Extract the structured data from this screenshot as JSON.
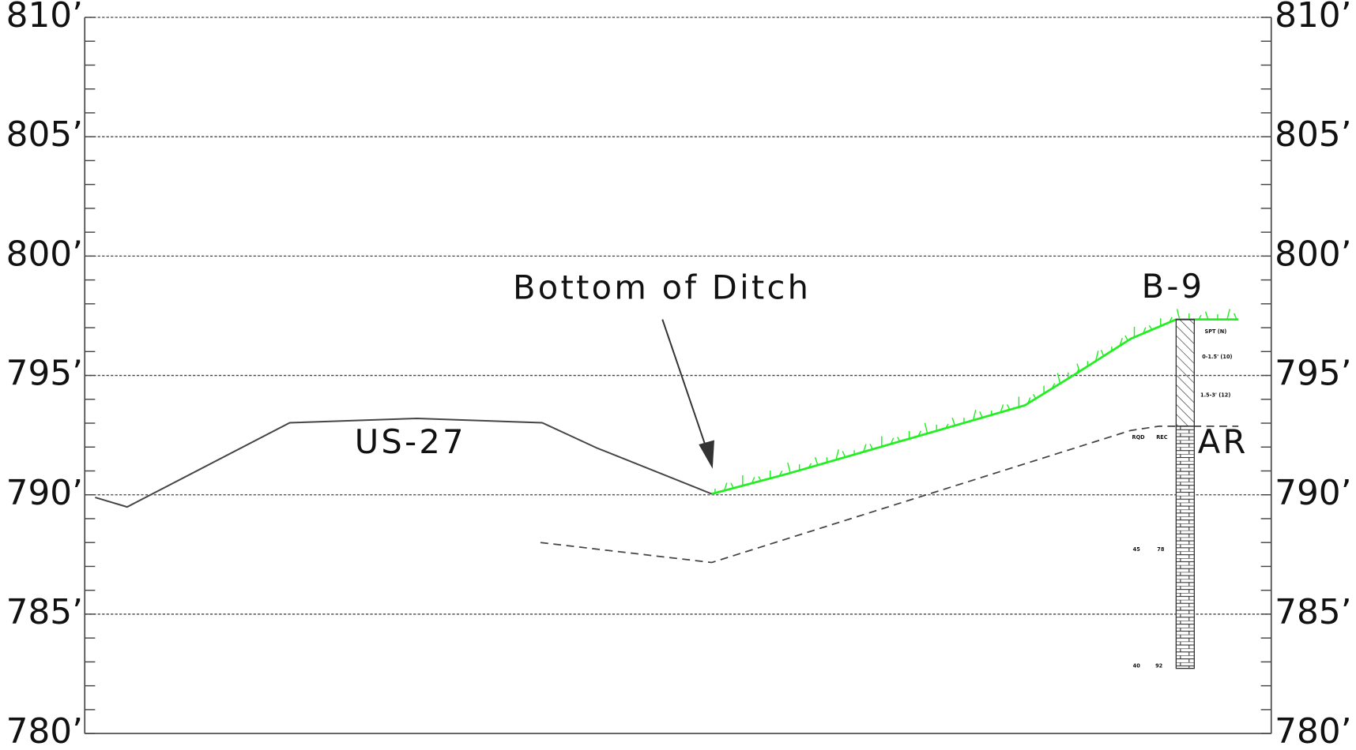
{
  "axis_labels": [
    "810’",
    "805’",
    "800’",
    "795’",
    "790’",
    "785’",
    "780’"
  ],
  "annotations": {
    "ditch": "Bottom of Ditch",
    "road": "US-27",
    "boring": "B-9",
    "rock": "AR"
  },
  "boring_log": {
    "spt_header": "SPT (N)",
    "spt_1": "0-1.5' (10)",
    "spt_2": "1.5-3' (12)",
    "rqd_header": "RQD",
    "rec_header": "REC",
    "rqd_1": "45",
    "rec_1": "78",
    "rqd_2": "40",
    "rec_2": "92"
  }
}
